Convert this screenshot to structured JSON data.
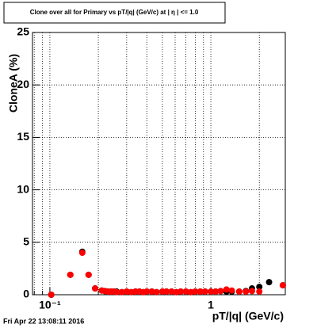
{
  "chart_data": {
    "type": "scatter",
    "title": "Clone  over all for Primary vs pT/|q| (GeV/c) at |  η | <= 1.0",
    "x_label": "pT/|q| (GeV/c)",
    "y_label": "CloneA (%)",
    "footer": "Fri Apr 22 13:08:11 2016",
    "log_x": true,
    "grid": true,
    "xlim": [
      0.078,
      2.9
    ],
    "ylim": [
      0,
      25
    ],
    "xticks": [
      {
        "value": 0.1,
        "label": "10⁻¹"
      },
      1
    ],
    "xminor": [
      0.08,
      0.09,
      0.2,
      0.3,
      0.4,
      0.5,
      0.6,
      0.7,
      0.8,
      0.9,
      2
    ],
    "yticks": [
      0,
      5,
      10,
      15,
      20,
      25
    ],
    "x": [
      0.102,
      0.134,
      0.159,
      0.174,
      0.191,
      0.21,
      0.22,
      0.23,
      0.24,
      0.25,
      0.26,
      0.28,
      0.3,
      0.32,
      0.34,
      0.36,
      0.38,
      0.4,
      0.43,
      0.46,
      0.5,
      0.53,
      0.57,
      0.61,
      0.65,
      0.7,
      0.75,
      0.8,
      0.86,
      0.92,
      1.0,
      1.07,
      1.15,
      1.25,
      1.35,
      1.5,
      1.65,
      1.8,
      2.0,
      2.3,
      2.8
    ],
    "series": [
      {
        "color": "#000000",
        "values": [
          0,
          1.9,
          4.1,
          1.9,
          0.6,
          0.4,
          0.35,
          0.3,
          0.3,
          0.3,
          0.3,
          0.25,
          0.3,
          0.25,
          0.3,
          0.3,
          0.25,
          0.3,
          0.3,
          0.25,
          0.3,
          0.3,
          0.3,
          0.25,
          0.3,
          0.3,
          0.25,
          0.3,
          0.3,
          0.3,
          0.3,
          0.3,
          0.35,
          0.3,
          0.3,
          0.3,
          0.35,
          0.6,
          0.75,
          1.2,
          0.9
        ]
      },
      {
        "color": "#ff0000",
        "values": [
          0,
          1.9,
          4.0,
          1.9,
          0.6,
          0.4,
          0.35,
          0.3,
          0.3,
          0.3,
          0.25,
          0.25,
          0.3,
          0.25,
          0.3,
          0.3,
          0.25,
          0.3,
          0.3,
          0.25,
          0.3,
          0.3,
          0.3,
          0.25,
          0.3,
          0.3,
          0.25,
          0.3,
          0.3,
          0.3,
          0.3,
          0.3,
          0.35,
          0.5,
          0.4,
          0.3,
          0.3,
          0.35,
          0.3,
          null,
          0.9
        ]
      }
    ]
  }
}
